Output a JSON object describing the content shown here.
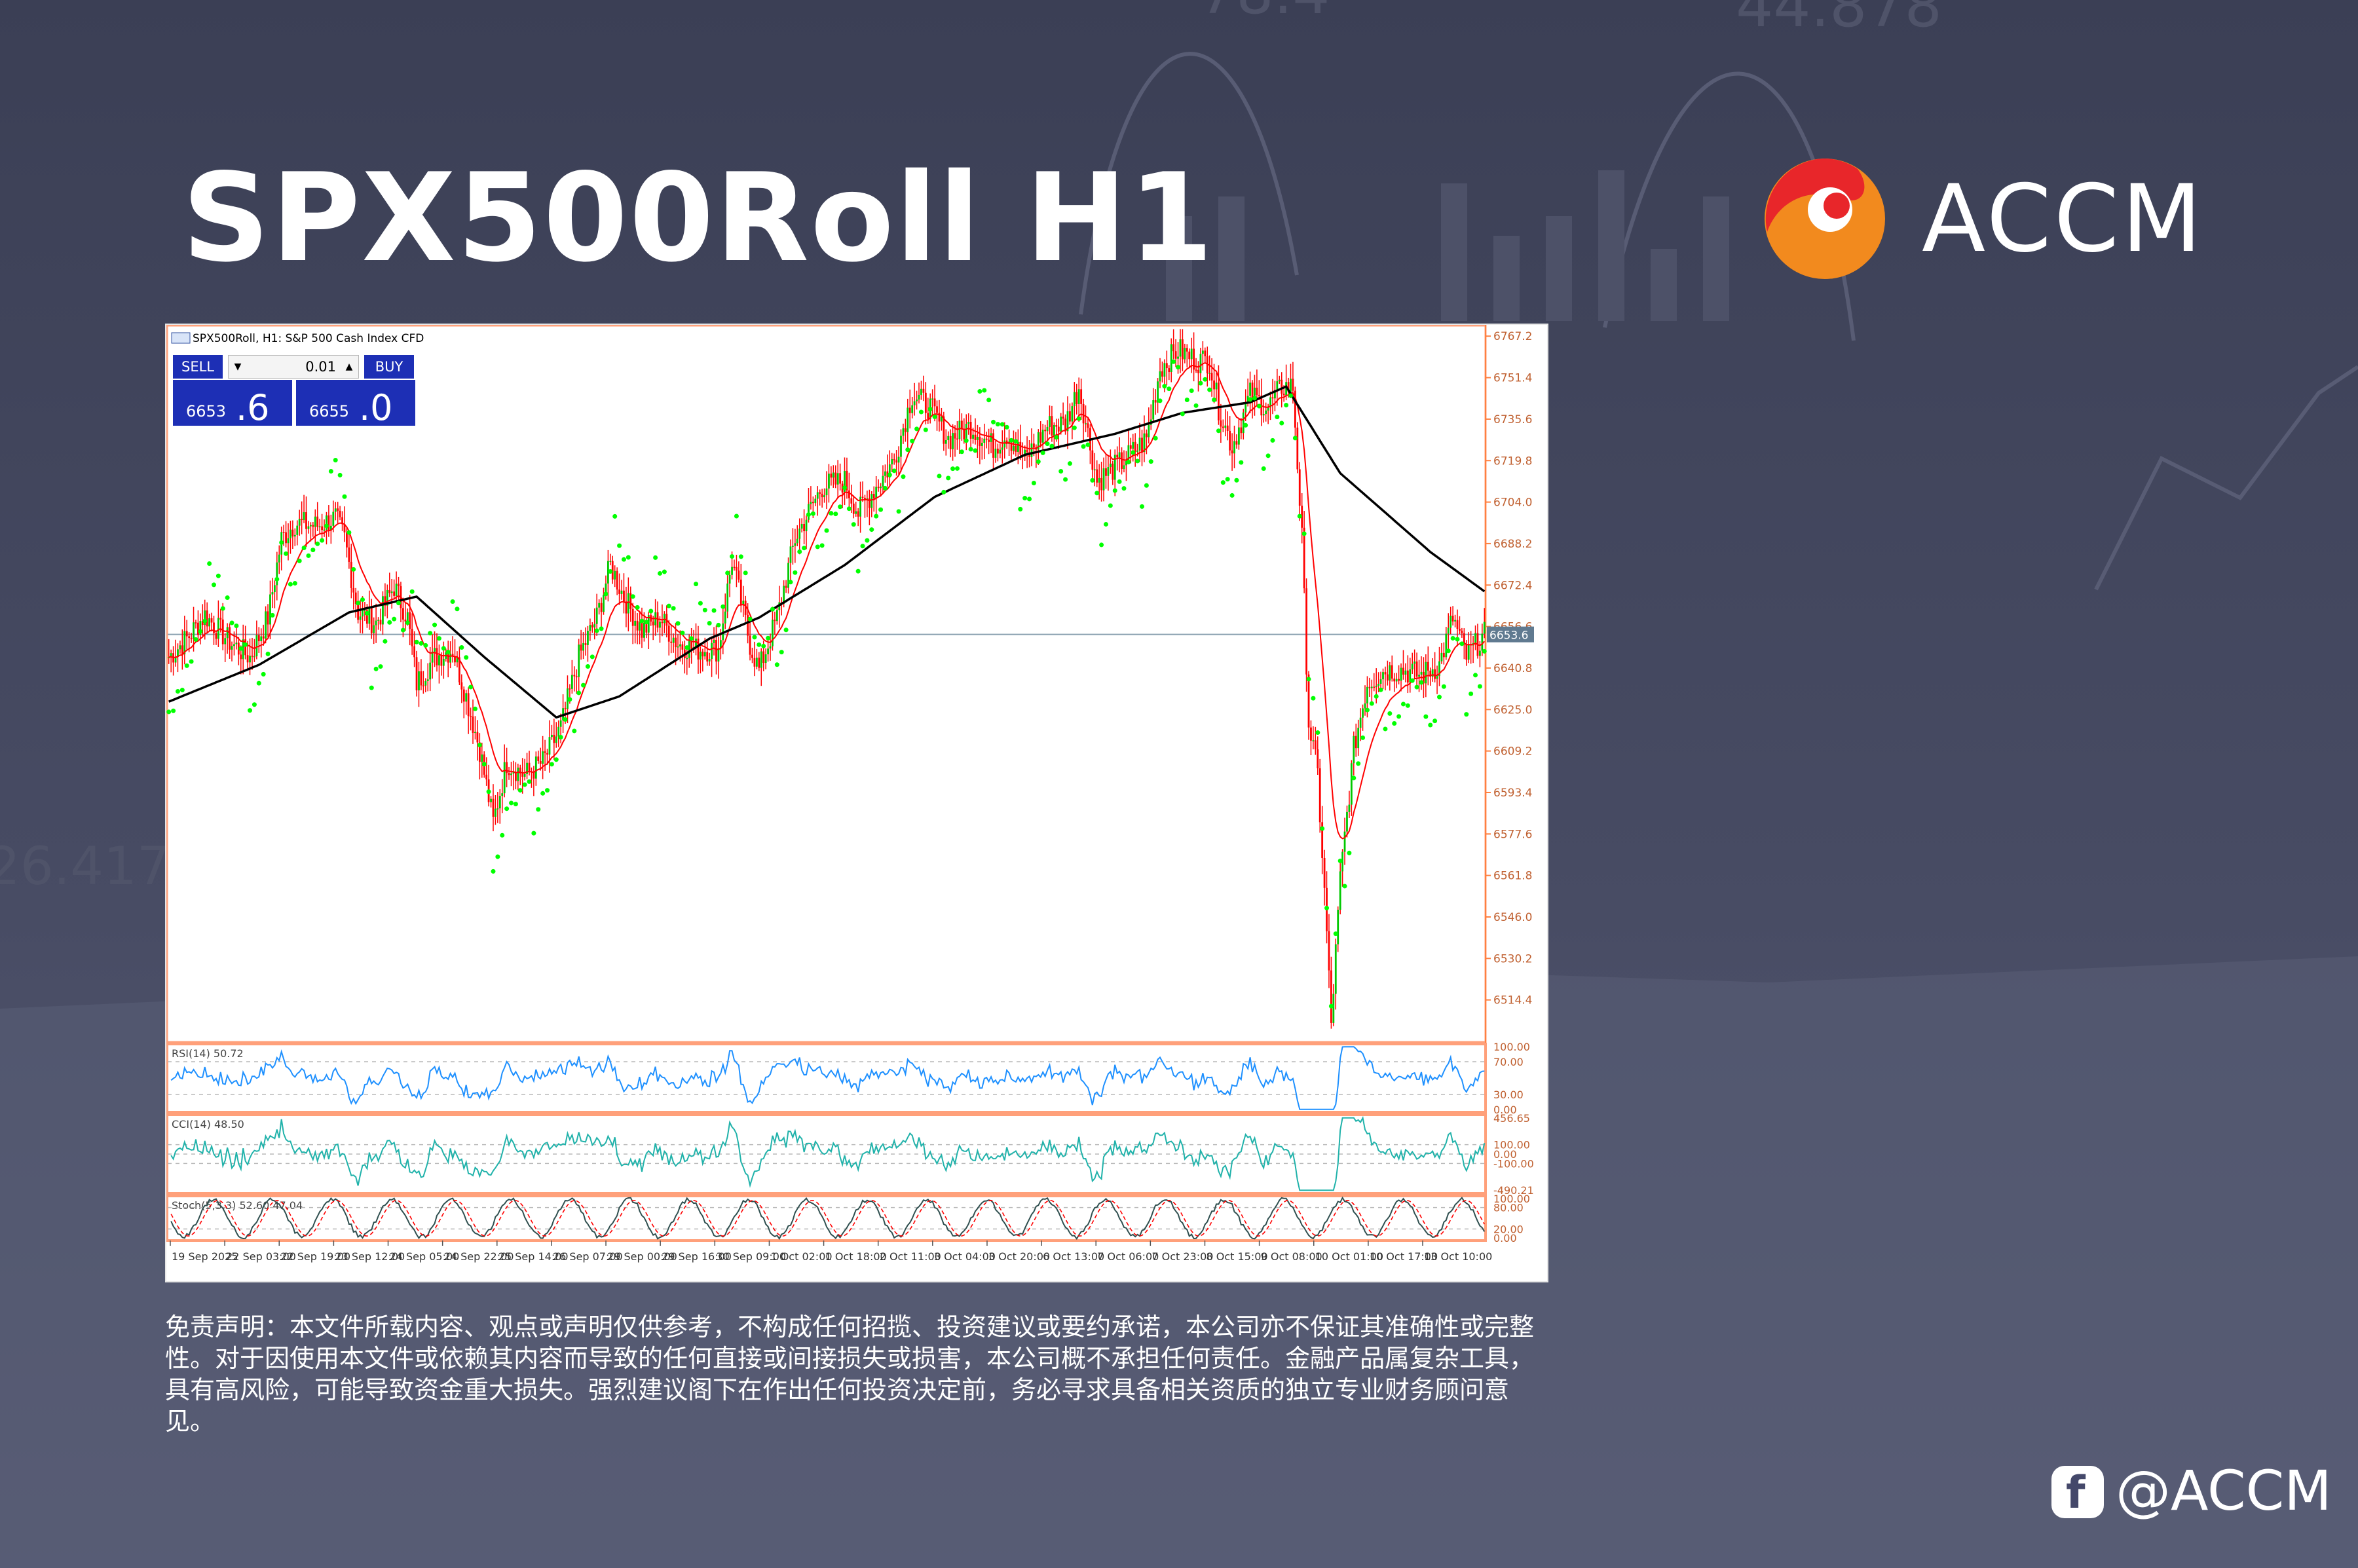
{
  "title": "SPX500Roll H1",
  "logo_text": "ACCM",
  "chart_header": "SPX500Roll, H1:  S&P 500 Cash Index CFD",
  "trade_panel": {
    "sell_label": "SELL",
    "buy_label": "BUY",
    "lot": "0.01",
    "sell_small": "6653",
    "sell_big": ".6",
    "buy_small": "6655",
    "buy_big": ".0"
  },
  "chart_data": {
    "type": "candlestick",
    "symbol": "SPX500Roll",
    "timeframe": "H1",
    "description": "S&P 500 Cash Index CFD",
    "y_ticks": [
      6767.2,
      6751.4,
      6735.6,
      6719.8,
      6704.0,
      6688.2,
      6672.4,
      6656.6,
      6640.8,
      6625.0,
      6609.2,
      6593.4,
      6577.6,
      6561.8,
      6546.0,
      6530.2,
      6514.4
    ],
    "ylim": [
      6498.6,
      6771.0
    ],
    "current_price": 6653.6,
    "current_price_label": "6653.6",
    "x_tick_labels": [
      "19 Sep 2025",
      "22 Sep 03:00",
      "22 Sep 19:00",
      "23 Sep 12:00",
      "24 Sep 05:00",
      "24 Sep 22:00",
      "25 Sep 14:00",
      "26 Sep 07:00",
      "29 Sep 00:00",
      "29 Sep 16:00",
      "30 Sep 09:00",
      "1 Oct 02:00",
      "1 Oct 18:00",
      "2 Oct 11:00",
      "3 Oct 04:00",
      "3 Oct 20:00",
      "6 Oct 13:00",
      "7 Oct 06:00",
      "7 Oct 23:00",
      "8 Oct 15:00",
      "9 Oct 08:00",
      "10 Oct 01:00",
      "10 Oct 17:00",
      "13 Oct 10:00"
    ],
    "price_path": [
      [
        0,
        6645
      ],
      [
        8,
        6652
      ],
      [
        16,
        6661
      ],
      [
        28,
        6650
      ],
      [
        36,
        6645
      ],
      [
        44,
        6660
      ],
      [
        50,
        6690
      ],
      [
        56,
        6696
      ],
      [
        66,
        6695
      ],
      [
        74,
        6698
      ],
      [
        78,
        6690
      ],
      [
        84,
        6662
      ],
      [
        92,
        6658
      ],
      [
        100,
        6672
      ],
      [
        106,
        6660
      ],
      [
        110,
        6635
      ],
      [
        118,
        6645
      ],
      [
        126,
        6648
      ],
      [
        132,
        6630
      ],
      [
        138,
        6610
      ],
      [
        144,
        6582
      ],
      [
        150,
        6605
      ],
      [
        158,
        6600
      ],
      [
        166,
        6605
      ],
      [
        174,
        6618
      ],
      [
        182,
        6645
      ],
      [
        190,
        6660
      ],
      [
        196,
        6680
      ],
      [
        202,
        6668
      ],
      [
        210,
        6655
      ],
      [
        218,
        6660
      ],
      [
        226,
        6650
      ],
      [
        234,
        6648
      ],
      [
        244,
        6648
      ],
      [
        250,
        6682
      ],
      [
        258,
        6650
      ],
      [
        262,
        6640
      ],
      [
        270,
        6660
      ],
      [
        278,
        6690
      ],
      [
        290,
        6710
      ],
      [
        300,
        6712
      ],
      [
        306,
        6700
      ],
      [
        314,
        6710
      ],
      [
        322,
        6720
      ],
      [
        330,
        6745
      ],
      [
        338,
        6740
      ],
      [
        346,
        6728
      ],
      [
        356,
        6733
      ],
      [
        366,
        6725
      ],
      [
        372,
        6730
      ],
      [
        380,
        6720
      ],
      [
        390,
        6733
      ],
      [
        398,
        6734
      ],
      [
        404,
        6748
      ],
      [
        412,
        6712
      ],
      [
        424,
        6720
      ],
      [
        434,
        6728
      ],
      [
        440,
        6755
      ],
      [
        448,
        6762
      ],
      [
        456,
        6758
      ],
      [
        462,
        6758
      ],
      [
        466,
        6740
      ],
      [
        472,
        6725
      ],
      [
        480,
        6745
      ],
      [
        488,
        6740
      ],
      [
        494,
        6748
      ],
      [
        499,
        6748
      ],
      [
        503,
        6690
      ],
      [
        506,
        6620
      ],
      [
        510,
        6600
      ],
      [
        514,
        6540
      ],
      [
        516,
        6505
      ],
      [
        520,
        6560
      ],
      [
        526,
        6610
      ],
      [
        532,
        6635
      ],
      [
        540,
        6640
      ],
      [
        548,
        6640
      ],
      [
        556,
        6638
      ],
      [
        564,
        6642
      ],
      [
        570,
        6660
      ],
      [
        576,
        6645
      ],
      [
        584,
        6653.6
      ]
    ],
    "ma_slow_path": [
      [
        0,
        6628
      ],
      [
        40,
        6642
      ],
      [
        80,
        6662
      ],
      [
        110,
        6668
      ],
      [
        140,
        6645
      ],
      [
        172,
        6622
      ],
      [
        200,
        6630
      ],
      [
        240,
        6652
      ],
      [
        262,
        6660
      ],
      [
        300,
        6680
      ],
      [
        340,
        6706
      ],
      [
        380,
        6722
      ],
      [
        420,
        6730
      ],
      [
        450,
        6738
      ],
      [
        480,
        6742
      ],
      [
        496,
        6748
      ],
      [
        520,
        6715
      ],
      [
        560,
        6685
      ],
      [
        584,
        6670
      ]
    ],
    "indicators": [
      {
        "name": "RSI(14)",
        "value": "50.72",
        "label": "RSI(14) 50.72",
        "levels": [
          "100.00",
          "70.00",
          "30.00",
          "0.00"
        ]
      },
      {
        "name": "CCI(14)",
        "value": "48.50",
        "label": "CCI(14) 48.50",
        "levels": [
          "456.65",
          "100.00",
          "0.00",
          "-100.00",
          "-490.21"
        ]
      },
      {
        "name": "Stoch(5,3,3)",
        "value": "52.60 47.04",
        "label": "Stoch(5,3,3) 52.60 47.04",
        "levels": [
          "100.00",
          "80.00",
          "20.00",
          "0.00"
        ]
      }
    ],
    "colors": {
      "candle": "#ff0000",
      "ma_fast": "#ff0000",
      "ma_slow": "#000000",
      "sar": "#00ff00",
      "rsi": "#1e90ff",
      "cci": "#20b2aa",
      "stoch_main": "#2f4f4f",
      "stoch_signal": "#ff0000",
      "axis": "#ff8040",
      "panel_border": "#ffa07a"
    }
  },
  "disclaimer": "免责声明：本文件所载内容、观点或声明仅供参考，不构成任何招揽、投资建议或要约承诺，本公司亦不保证其准确性或完整性。对于因使用本文件或依赖其内容而导致的任何直接或间接损失或损害，本公司概不承担任何责任。金融产品属复杂工具，具有高风险，可能导致资金重大损失。强烈建议阁下在作出任何投资决定前，务必寻求具备相关资质的独立专业财务顾问意见。",
  "social_handle": "@ACCM",
  "social_icon": "facebook-icon"
}
